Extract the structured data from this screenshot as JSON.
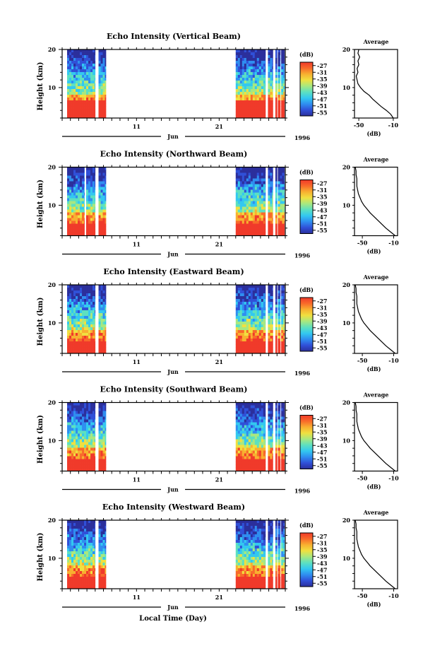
{
  "figure": {
    "x_axis_label": "Local Time (Day)",
    "month_label": "Jun",
    "year_label": "1996"
  },
  "colors": {
    "colormap": [
      "#2b2f9c",
      "#3050d8",
      "#2f8ef0",
      "#33c8f0",
      "#5de0c0",
      "#a8e880",
      "#f0e040",
      "#f8b030",
      "#f86a2a",
      "#f03a2a"
    ],
    "axis": "#000000"
  },
  "chart_data": [
    {
      "type": "heatmap",
      "title": "Echo Intensity (Vertical Beam)",
      "ylabel": "Height (km)",
      "xlabel": "Local Time (Day)",
      "x_ticks": [
        "11",
        "21"
      ],
      "x_range_days": [
        2,
        29
      ],
      "y_ticks": [
        "20",
        "10"
      ],
      "ylim": [
        2,
        20
      ],
      "colorbar": {
        "title": "(dB)",
        "ticks": [
          "-27",
          "-31",
          "-35",
          "-39",
          "-43",
          "-47",
          "-51",
          "-55"
        ],
        "range": [
          -57,
          -25
        ]
      },
      "data_periods_days": [
        [
          2.6,
          6.0
        ],
        [
          6.4,
          7.3
        ],
        [
          23.0,
          26.6
        ],
        [
          26.9,
          27.5
        ],
        [
          27.8,
          28.0
        ],
        [
          28.1,
          28.4
        ],
        [
          28.5,
          28.9
        ]
      ],
      "strong_echo_top_km": 6.5,
      "average_profile": {
        "title": "Average",
        "xlabel": "(dB)",
        "x_ticks": [
          "-50",
          "-10"
        ],
        "y_ticks": [
          "20",
          "10"
        ],
        "xlim": [
          -55,
          -5
        ],
        "ylim": [
          2,
          20
        ],
        "height_km": [
          2.0,
          3.0,
          4.0,
          5.0,
          6.0,
          7.0,
          8.0,
          9.0,
          10.0,
          11.0,
          12.0,
          13.0,
          14.0,
          15.0,
          16.0,
          17.0,
          18.0,
          19.0,
          20.0
        ],
        "intensity_db": [
          -10,
          -13,
          -18,
          -24,
          -29,
          -34,
          -38,
          -44,
          -48,
          -51,
          -52,
          -53,
          -51,
          -52,
          -50,
          -51,
          -49,
          -51,
          -50
        ]
      }
    },
    {
      "type": "heatmap",
      "title": "Echo Intensity (Northward Beam)",
      "ylabel": "Height (km)",
      "xlabel": "Local Time (Day)",
      "x_ticks": [
        "11",
        "21"
      ],
      "x_range_days": [
        2,
        29
      ],
      "y_ticks": [
        "20",
        "10"
      ],
      "ylim": [
        2,
        20
      ],
      "colorbar": {
        "title": "(dB)",
        "ticks": [
          "-27",
          "-31",
          "-35",
          "-39",
          "-43",
          "-47",
          "-51",
          "-55"
        ],
        "range": [
          -57,
          -25
        ]
      },
      "data_periods_days": [
        [
          2.6,
          4.7
        ],
        [
          4.9,
          6.0
        ],
        [
          6.4,
          7.3
        ],
        [
          23.0,
          26.6
        ],
        [
          26.9,
          27.5
        ],
        [
          27.8,
          28.0
        ],
        [
          28.1,
          28.9
        ]
      ],
      "strong_echo_top_km": 5.5,
      "average_profile": {
        "title": "Average",
        "xlabel": "(dB)",
        "x_ticks": [
          "-50",
          "-10"
        ],
        "y_ticks": [
          "20",
          "10"
        ],
        "xlim": [
          -60,
          -5
        ],
        "ylim": [
          2,
          20
        ],
        "height_km": [
          2.0,
          3.0,
          4.0,
          5.0,
          6.0,
          7.0,
          8.0,
          9.0,
          10.0,
          11.0,
          12.0,
          13.0,
          14.0,
          15.0,
          16.0,
          17.0,
          18.0,
          19.0,
          20.0
        ],
        "intensity_db": [
          -8,
          -14,
          -20,
          -25,
          -30,
          -35,
          -40,
          -44,
          -48,
          -51,
          -53,
          -55,
          -56,
          -57,
          -57,
          -57,
          -58,
          -58,
          -59
        ]
      }
    },
    {
      "type": "heatmap",
      "title": "Echo Intensity (Eastward Beam)",
      "ylabel": "Height (km)",
      "xlabel": "Local Time (Day)",
      "x_ticks": [
        "11",
        "21"
      ],
      "x_range_days": [
        2,
        29
      ],
      "y_ticks": [
        "20",
        "10"
      ],
      "ylim": [
        2,
        20
      ],
      "colorbar": {
        "title": "(dB)",
        "ticks": [
          "-27",
          "-31",
          "-35",
          "-39",
          "-43",
          "-47",
          "-51",
          "-55"
        ],
        "range": [
          -57,
          -25
        ]
      },
      "data_periods_days": [
        [
          2.6,
          6.0
        ],
        [
          6.4,
          7.3
        ],
        [
          23.0,
          26.6
        ],
        [
          26.9,
          27.5
        ],
        [
          27.8,
          28.0
        ],
        [
          28.1,
          28.4
        ],
        [
          28.5,
          28.9
        ]
      ],
      "strong_echo_top_km": 5.5,
      "average_profile": {
        "title": "Average",
        "xlabel": "(dB)",
        "x_ticks": [
          "-50",
          "-10"
        ],
        "y_ticks": [
          "20",
          "10"
        ],
        "xlim": [
          -60,
          -5
        ],
        "ylim": [
          2,
          20
        ],
        "height_km": [
          2.0,
          3.0,
          4.0,
          5.0,
          6.0,
          7.0,
          8.0,
          9.0,
          10.0,
          11.0,
          12.0,
          13.0,
          14.0,
          15.0,
          16.0,
          17.0,
          18.0,
          19.0,
          20.0
        ],
        "intensity_db": [
          -8,
          -14,
          -20,
          -25,
          -30,
          -35,
          -40,
          -44,
          -48,
          -51,
          -53,
          -55,
          -56,
          -57,
          -57,
          -57,
          -58,
          -58,
          -59
        ]
      }
    },
    {
      "type": "heatmap",
      "title": "Echo Intensity (Southward Beam)",
      "ylabel": "Height (km)",
      "xlabel": "Local Time (Day)",
      "x_ticks": [
        "11",
        "21"
      ],
      "x_range_days": [
        2,
        29
      ],
      "y_ticks": [
        "20",
        "10"
      ],
      "ylim": [
        2,
        20
      ],
      "colorbar": {
        "title": "(dB)",
        "ticks": [
          "-27",
          "-31",
          "-35",
          "-39",
          "-43",
          "-47",
          "-51",
          "-55"
        ],
        "range": [
          -57,
          -25
        ]
      },
      "data_periods_days": [
        [
          2.6,
          6.0
        ],
        [
          6.4,
          7.3
        ],
        [
          23.0,
          26.6
        ],
        [
          26.9,
          27.5
        ],
        [
          27.8,
          28.0
        ],
        [
          28.1,
          28.4
        ],
        [
          28.5,
          28.9
        ]
      ],
      "strong_echo_top_km": 5.5,
      "average_profile": {
        "title": "Average",
        "xlabel": "(dB)",
        "x_ticks": [
          "-50",
          "-10"
        ],
        "y_ticks": [
          "20",
          "10"
        ],
        "xlim": [
          -60,
          -5
        ],
        "ylim": [
          2,
          20
        ],
        "height_km": [
          2.0,
          3.0,
          4.0,
          5.0,
          6.0,
          7.0,
          8.0,
          9.0,
          10.0,
          11.0,
          12.0,
          13.0,
          14.0,
          15.0,
          16.0,
          17.0,
          18.0,
          19.0,
          20.0
        ],
        "intensity_db": [
          -8,
          -14,
          -20,
          -25,
          -30,
          -35,
          -40,
          -44,
          -48,
          -51,
          -53,
          -55,
          -56,
          -57,
          -57,
          -57,
          -58,
          -58,
          -59
        ]
      }
    },
    {
      "type": "heatmap",
      "title": "Echo Intensity (Westward Beam)",
      "ylabel": "Height (km)",
      "xlabel": "Local Time (Day)",
      "x_ticks": [
        "11",
        "21"
      ],
      "x_range_days": [
        2,
        29
      ],
      "y_ticks": [
        "20",
        "10"
      ],
      "ylim": [
        2,
        20
      ],
      "colorbar": {
        "title": "(dB)",
        "ticks": [
          "-27",
          "-31",
          "-35",
          "-39",
          "-43",
          "-47",
          "-51",
          "-55"
        ],
        "range": [
          -57,
          -25
        ]
      },
      "data_periods_days": [
        [
          2.6,
          6.0
        ],
        [
          6.4,
          7.3
        ],
        [
          23.0,
          26.6
        ],
        [
          26.9,
          27.5
        ],
        [
          27.8,
          28.0
        ],
        [
          28.1,
          28.4
        ],
        [
          28.5,
          28.9
        ]
      ],
      "strong_echo_top_km": 5.5,
      "average_profile": {
        "title": "Average",
        "xlabel": "(dB)",
        "x_ticks": [
          "-50",
          "-10"
        ],
        "y_ticks": [
          "20",
          "10"
        ],
        "xlim": [
          -60,
          -5
        ],
        "ylim": [
          2,
          20
        ],
        "height_km": [
          2.0,
          3.0,
          4.0,
          5.0,
          6.0,
          7.0,
          8.0,
          9.0,
          10.0,
          11.0,
          12.0,
          13.0,
          14.0,
          15.0,
          16.0,
          17.0,
          18.0,
          19.0,
          20.0
        ],
        "intensity_db": [
          -8,
          -14,
          -20,
          -25,
          -30,
          -35,
          -40,
          -44,
          -48,
          -51,
          -53,
          -55,
          -56,
          -57,
          -57,
          -57,
          -58,
          -58,
          -59
        ]
      }
    }
  ]
}
